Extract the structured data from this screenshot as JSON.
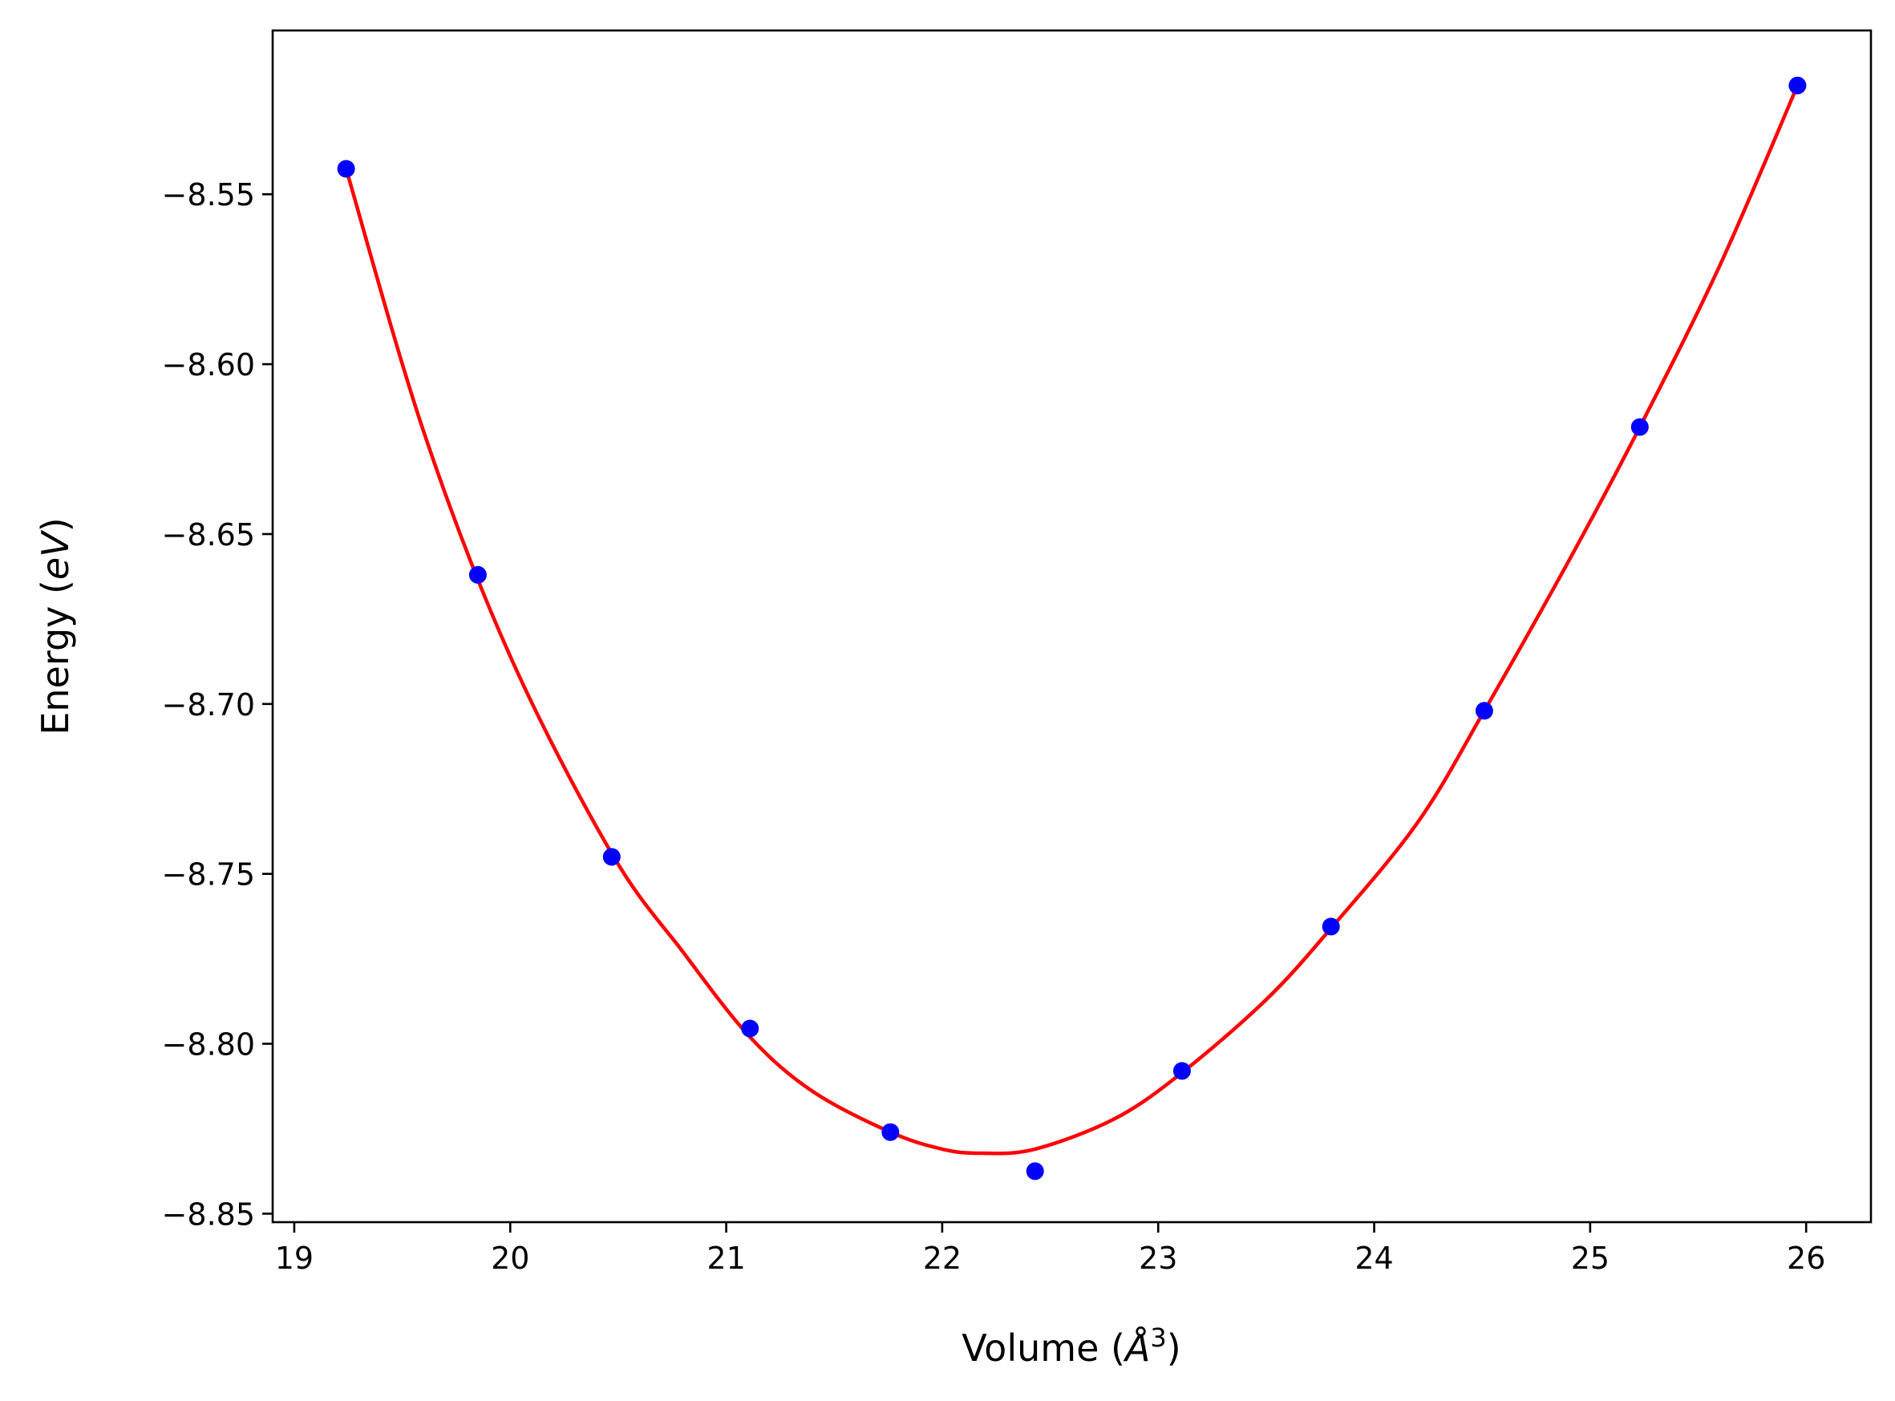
{
  "chart_data": {
    "type": "scatter",
    "xlabel": {
      "prefix": "Volume (",
      "symbol": "Å",
      "exp": "3",
      "suffix": ")"
    },
    "ylabel": {
      "prefix": "Energy (",
      "unit": "eV",
      "suffix": ")"
    },
    "xlim": [
      18.9,
      26.3
    ],
    "ylim": [
      -8.8525,
      -8.5018
    ],
    "xticks": [
      19,
      20,
      21,
      22,
      23,
      24,
      25,
      26
    ],
    "yticks": [
      -8.55,
      -8.6,
      -8.65,
      -8.7,
      -8.75,
      -8.8,
      -8.85
    ],
    "ytick_labels": [
      "−8.55",
      "−8.60",
      "−8.65",
      "−8.70",
      "−8.75",
      "−8.80",
      "−8.85"
    ],
    "grid": false,
    "series": [
      {
        "kind": "points",
        "color": "#0000ff",
        "x": [
          19.24,
          19.85,
          20.47,
          21.11,
          21.76,
          22.43,
          23.11,
          23.8,
          24.51,
          25.23,
          25.96
        ],
        "y": [
          -8.5425,
          -8.662,
          -8.745,
          -8.7955,
          -8.826,
          -8.8375,
          -8.808,
          -8.7655,
          -8.702,
          -8.6185,
          -8.518
        ]
      },
      {
        "kind": "fit",
        "color": "#ff0000",
        "x": [
          19.24,
          19.6,
          20.0,
          20.47,
          20.8,
          21.11,
          21.4,
          21.76,
          22.0,
          22.18,
          22.43,
          22.8,
          23.11,
          23.5,
          23.8,
          24.2,
          24.51,
          24.9,
          25.23,
          25.6,
          25.96
        ],
        "y": [
          -8.5425,
          -8.62,
          -8.686,
          -8.744,
          -8.773,
          -8.798,
          -8.814,
          -8.826,
          -8.831,
          -8.8322,
          -8.831,
          -8.822,
          -8.8085,
          -8.787,
          -8.766,
          -8.735,
          -8.702,
          -8.658,
          -8.6185,
          -8.571,
          -8.518
        ]
      }
    ]
  }
}
